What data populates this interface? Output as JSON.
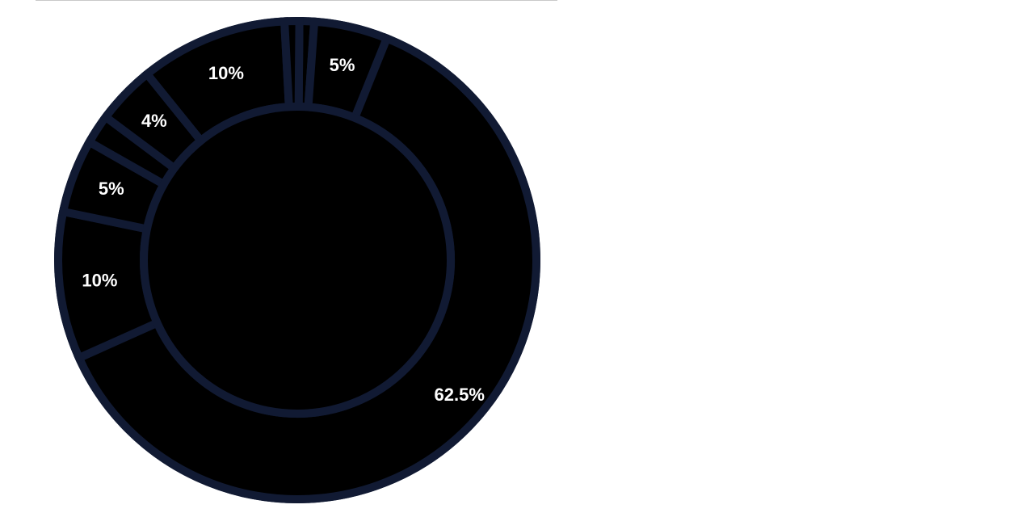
{
  "chart_data": {
    "type": "pie",
    "variant": "donut",
    "title": "",
    "colors": {
      "slice_fill": "#000000",
      "stroke": "#111a33",
      "label_text": "#ffffff",
      "background": "#ffffff"
    },
    "slices": [
      {
        "value": 1,
        "label": ""
      },
      {
        "value": 5,
        "label": "5%"
      },
      {
        "value": 62.5,
        "label": "62.5%"
      },
      {
        "value": 10,
        "label": "10%"
      },
      {
        "value": 5,
        "label": "5%"
      },
      {
        "value": 2,
        "label": ""
      },
      {
        "value": 4,
        "label": "4%"
      },
      {
        "value": 10,
        "label": "10%"
      },
      {
        "value": 1,
        "label": ""
      }
    ]
  }
}
